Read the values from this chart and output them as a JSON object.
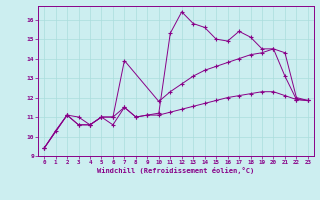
{
  "xlabel": "Windchill (Refroidissement éolien,°C)",
  "bg_color": "#cceef0",
  "grid_color": "#aadddd",
  "line_color": "#880088",
  "xlim": [
    -0.5,
    23.5
  ],
  "ylim": [
    9,
    16.7
  ],
  "xticks": [
    0,
    1,
    2,
    3,
    4,
    5,
    6,
    7,
    8,
    9,
    10,
    11,
    12,
    13,
    14,
    15,
    16,
    17,
    18,
    19,
    20,
    21,
    22,
    23
  ],
  "yticks": [
    9,
    10,
    11,
    12,
    13,
    14,
    15,
    16
  ],
  "curve1_x": [
    0,
    1,
    2,
    3,
    4,
    5,
    6,
    7,
    8,
    9,
    10,
    11,
    12,
    13,
    14,
    15,
    16,
    17,
    18,
    19,
    20,
    21,
    22,
    23
  ],
  "curve1_y": [
    9.4,
    10.3,
    11.1,
    11.0,
    10.6,
    11.0,
    10.6,
    11.5,
    11.0,
    11.1,
    11.2,
    15.3,
    16.4,
    15.8,
    15.6,
    15.0,
    14.9,
    15.4,
    15.1,
    14.5,
    14.5,
    13.1,
    11.9,
    11.85
  ],
  "curve2_x": [
    0,
    2,
    3,
    4,
    5,
    6,
    7,
    10,
    11,
    12,
    13,
    14,
    15,
    16,
    17,
    18,
    19,
    20,
    21,
    22,
    23
  ],
  "curve2_y": [
    9.4,
    11.1,
    10.6,
    10.6,
    11.0,
    11.0,
    13.9,
    11.8,
    12.3,
    12.7,
    13.1,
    13.4,
    13.6,
    13.8,
    14.0,
    14.2,
    14.3,
    14.5,
    14.3,
    12.0,
    11.85
  ],
  "curve3_x": [
    0,
    2,
    3,
    4,
    5,
    6,
    7,
    8,
    9,
    10,
    11,
    12,
    13,
    14,
    15,
    16,
    17,
    18,
    19,
    20,
    21,
    22,
    23
  ],
  "curve3_y": [
    9.4,
    11.1,
    10.6,
    10.6,
    11.0,
    11.0,
    11.5,
    11.0,
    11.1,
    11.1,
    11.25,
    11.4,
    11.55,
    11.7,
    11.85,
    12.0,
    12.1,
    12.2,
    12.3,
    12.3,
    12.1,
    11.9,
    11.85
  ]
}
